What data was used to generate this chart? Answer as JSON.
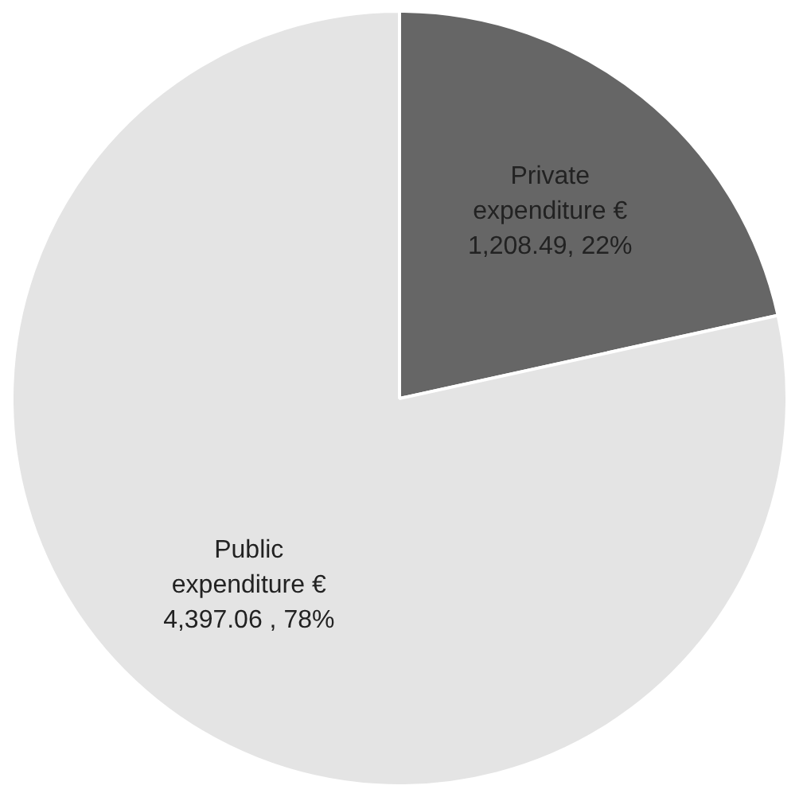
{
  "chart_data": {
    "type": "pie",
    "categories": [
      "Private expenditure €",
      "Public expenditure €"
    ],
    "values": [
      1208.49,
      4397.06
    ],
    "colors": [
      "#666666",
      "#e4e4e4"
    ],
    "value_labels": [
      "1,208.49, 22%",
      "4,397.06 , 78%"
    ]
  }
}
